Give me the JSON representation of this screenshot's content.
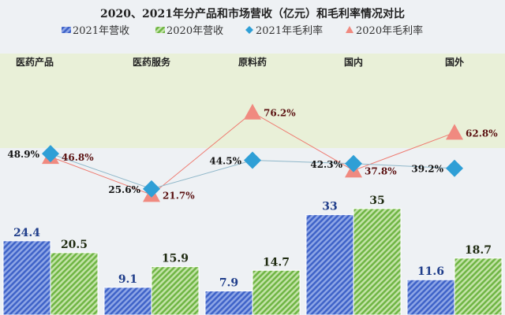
{
  "chart_data": {
    "type": "bar",
    "title": "2020、2021年分产品和市场营收（亿元）和毛利率情况对比",
    "categories": [
      "医药产品",
      "医药服务",
      "原料药",
      "国内",
      "国外"
    ],
    "legend_position": "top",
    "series": [
      {
        "name": "2021年营收",
        "kind": "bar",
        "color": "#4a6fd0",
        "values": [
          24.4,
          9.1,
          7.9,
          33,
          11.6
        ],
        "labels": [
          "24.4",
          "9.1",
          "7.9",
          "33",
          "11.6"
        ]
      },
      {
        "name": "2020年营收",
        "kind": "bar",
        "color": "#7cc155",
        "values": [
          20.5,
          15.9,
          14.7,
          35,
          18.7
        ],
        "labels": [
          "20.5",
          "15.9",
          "14.7",
          "35",
          "18.7"
        ]
      },
      {
        "name": "2021年毛利率",
        "kind": "line",
        "marker": "diamond",
        "color": "#2f9fd6",
        "values": [
          48.9,
          25.6,
          44.5,
          42.3,
          39.2
        ],
        "labels": [
          "48.9%",
          "25.6%",
          "44.5%",
          "42.3%",
          "39.2%"
        ]
      },
      {
        "name": "2020年毛利率",
        "kind": "line",
        "marker": "triangle",
        "color": "#f08a80",
        "values": [
          46.8,
          21.7,
          76.2,
          37.8,
          62.8
        ],
        "labels": [
          "46.8%",
          "21.7%",
          "76.2%",
          "37.8%",
          "62.8%"
        ]
      }
    ],
    "y_bar_range": [
      0,
      35
    ],
    "y_line_range": [
      20,
      80
    ],
    "grid": false
  }
}
